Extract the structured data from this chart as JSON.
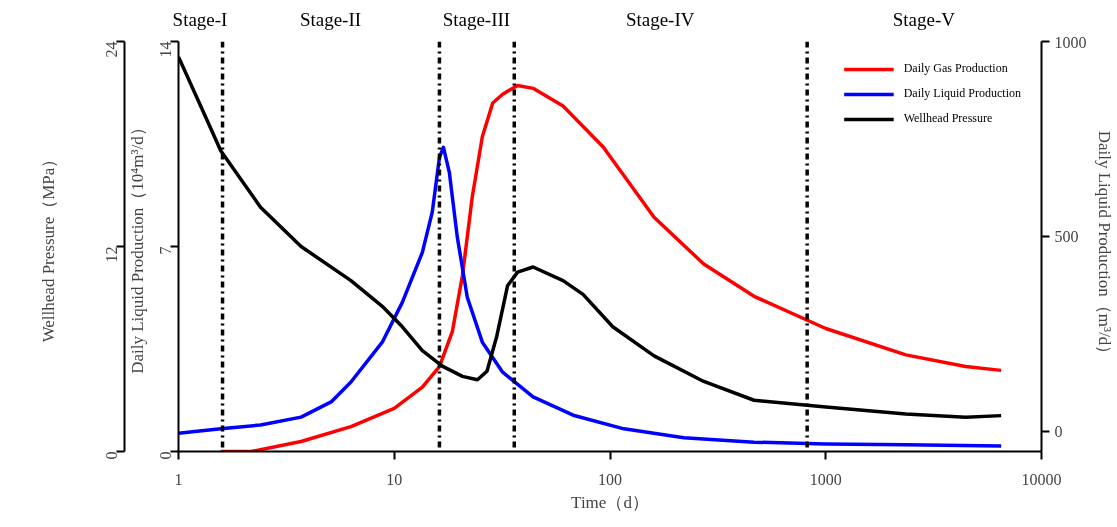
{
  "chart_data": {
    "type": "line",
    "xlabel": "Time（d）",
    "ylabel": "Daily Liquid Production（10⁴m³/d）",
    "y2label": "Daily Liquid Production（m³/d）",
    "y3label": "Wellhead Pressure（MPa）",
    "log": "x",
    "xlim": [
      1,
      10000
    ],
    "xticks": [
      1,
      10,
      100,
      1000,
      10000
    ],
    "ylim": [
      0,
      14
    ],
    "yticks": [
      0,
      7,
      14
    ],
    "y2lim": [
      -50,
      1000
    ],
    "y2ticks": [
      0,
      500,
      1000
    ],
    "y3lim": [
      0,
      24
    ],
    "y3ticks": [
      0,
      12,
      24
    ],
    "grid": false,
    "legend": "top right",
    "line_style": "solid",
    "marker": "none",
    "series": [
      {
        "name": "Daily Gas Production",
        "color": "#ff0000",
        "x": [
          1.57,
          2.17,
          3.7,
          6.3,
          10,
          13.5,
          16.2,
          18.6,
          20.7,
          23,
          25.6,
          28.6,
          31.8,
          37.3,
          44,
          60.6,
          93,
          160,
          272,
          465,
          1000,
          2350,
          4450,
          6500
        ],
        "values": [
          0,
          0,
          0.34,
          0.85,
          1.47,
          2.2,
          2.9,
          4.1,
          6.0,
          8.7,
          10.75,
          11.9,
          12.2,
          12.5,
          12.4,
          11.8,
          10.4,
          8.0,
          6.4,
          5.3,
          4.2,
          3.3,
          2.9,
          2.77
        ]
      },
      {
        "name": "Daily Liquid Production",
        "color": "#0000ff",
        "axis": "y2",
        "x": [
          1,
          1.57,
          2.4,
          3.7,
          5.1,
          6.3,
          8.8,
          10.9,
          13.5,
          15,
          16.2,
          16.9,
          18,
          19.6,
          21.8,
          25.6,
          31.8,
          44,
          67.5,
          116,
          220,
          465,
          1000,
          2350,
          6500
        ],
        "values": [
          -3,
          8,
          18,
          38,
          77,
          128,
          230,
          332,
          460,
          563,
          703,
          729,
          665,
          499,
          345,
          230,
          153,
          90,
          43,
          8,
          -15,
          -26,
          -31,
          -33,
          -36
        ]
      },
      {
        "name": "Wellhead Pressure",
        "color": "#000000",
        "axis": "y3",
        "x": [
          1,
          1.27,
          1.57,
          2.4,
          3.7,
          6.3,
          8.8,
          10.9,
          13.5,
          16.7,
          20.7,
          24.3,
          26.9,
          29.8,
          33.5,
          37.3,
          44,
          60.6,
          75,
          103,
          160,
          272,
          465,
          1000,
          2350,
          4450,
          6500
        ],
        "values": [
          23.1,
          20.2,
          17.6,
          14.3,
          12.0,
          10.0,
          8.5,
          7.3,
          5.9,
          5.0,
          4.4,
          4.2,
          4.7,
          6.7,
          9.7,
          10.5,
          10.8,
          10.0,
          9.2,
          7.3,
          5.6,
          4.1,
          3.0,
          2.6,
          2.2,
          2.0,
          2.1
        ]
      }
    ],
    "ref_lines": [
      {
        "axis": "x",
        "value": 1.6,
        "line_style": "dashdot",
        "color": "#000000"
      },
      {
        "axis": "x",
        "value": 16.2,
        "line_style": "dashdot",
        "color": "#000000"
      },
      {
        "axis": "x",
        "value": 36,
        "line_style": "dashdot",
        "color": "#000000"
      },
      {
        "axis": "x",
        "value": 820,
        "line_style": "dashdot",
        "color": "#000000"
      }
    ],
    "annotations": [
      "Stage-I",
      "Stage-II",
      "Stage-III",
      "Stage-IV",
      "Stage-V"
    ]
  }
}
